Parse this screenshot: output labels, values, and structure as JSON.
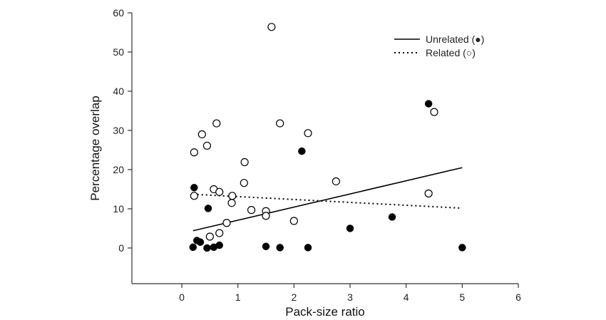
{
  "chart_data": {
    "type": "scatter",
    "title": "",
    "xlabel": "Pack-size ratio",
    "ylabel": "Percentage overlap",
    "xlim": [
      -0.89,
      6
    ],
    "ylim": [
      -9.1,
      60
    ],
    "xticks": [
      0,
      1,
      2,
      3,
      4,
      5,
      6
    ],
    "yticks": [
      0,
      10,
      20,
      30,
      40,
      50,
      60
    ],
    "grid": false,
    "legend_position": "top-right",
    "series": [
      {
        "name": "Unrelated (●)",
        "marker": "filled-circle",
        "line_style": "solid",
        "color": "#000000",
        "points": [
          [
            0.2,
            0.2
          ],
          [
            0.27,
            1.9
          ],
          [
            0.33,
            1.5
          ],
          [
            0.45,
            0.0
          ],
          [
            0.57,
            0.2
          ],
          [
            0.67,
            0.7
          ],
          [
            0.22,
            15.4
          ],
          [
            0.47,
            10.1
          ],
          [
            1.5,
            0.4
          ],
          [
            1.75,
            0.1
          ],
          [
            2.14,
            24.7
          ],
          [
            2.25,
            0.1
          ],
          [
            3.0,
            5.0
          ],
          [
            3.75,
            7.9
          ],
          [
            4.4,
            36.8
          ],
          [
            5.0,
            0.1
          ]
        ],
        "fit_line": [
          [
            0.2,
            4.4
          ],
          [
            5.0,
            20.5
          ]
        ]
      },
      {
        "name": "Related (○)",
        "marker": "open-circle",
        "line_style": "dotted",
        "color": "#000000",
        "points": [
          [
            0.22,
            24.4
          ],
          [
            0.22,
            13.3
          ],
          [
            0.36,
            29.0
          ],
          [
            0.45,
            26.1
          ],
          [
            0.62,
            31.8
          ],
          [
            0.57,
            15.0
          ],
          [
            0.67,
            14.3
          ],
          [
            0.9,
            13.3
          ],
          [
            0.89,
            11.5
          ],
          [
            0.8,
            6.4
          ],
          [
            0.5,
            2.9
          ],
          [
            0.67,
            3.8
          ],
          [
            1.12,
            21.9
          ],
          [
            1.11,
            16.6
          ],
          [
            1.24,
            9.7
          ],
          [
            1.5,
            9.4
          ],
          [
            1.5,
            8.2
          ],
          [
            1.6,
            56.4
          ],
          [
            1.75,
            31.8
          ],
          [
            2.25,
            29.3
          ],
          [
            2.0,
            6.9
          ],
          [
            2.75,
            17.0
          ],
          [
            4.5,
            34.7
          ],
          [
            4.4,
            13.9
          ]
        ],
        "fit_line": [
          [
            0.2,
            13.7
          ],
          [
            4.95,
            10.2
          ]
        ]
      }
    ]
  }
}
